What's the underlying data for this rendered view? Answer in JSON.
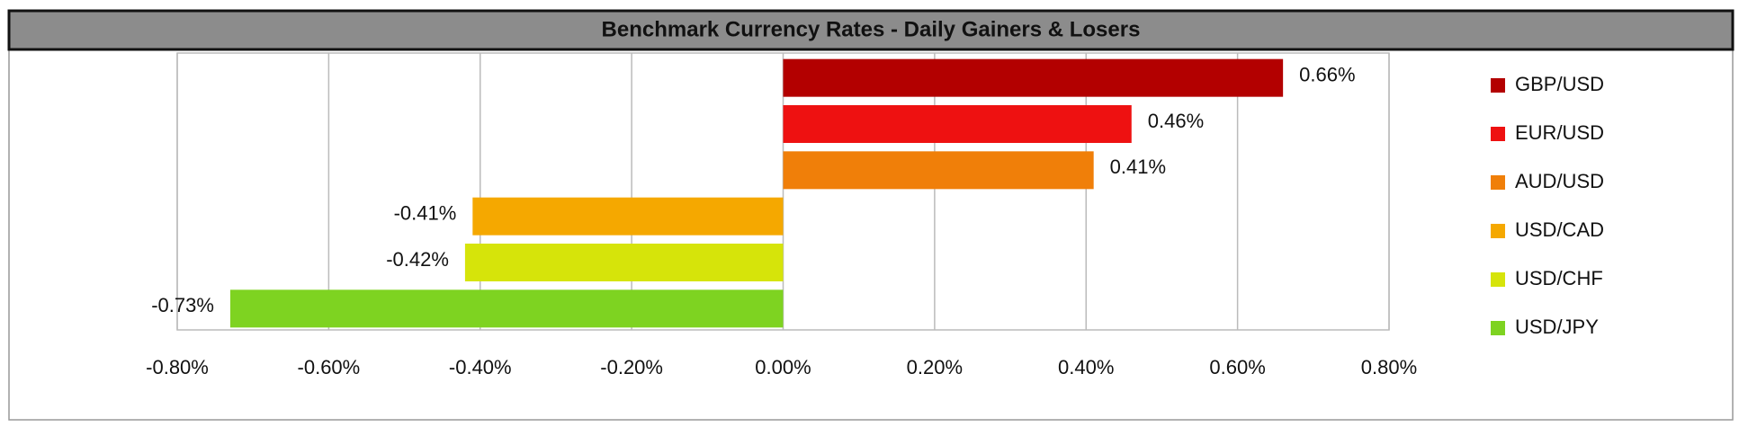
{
  "chart_data": {
    "type": "hbar",
    "title": "Benchmark Currency Rates - Daily Gainers & Losers",
    "categories": [
      "GBP/USD",
      "EUR/USD",
      "AUD/USD",
      "USD/CAD",
      "USD/CHF",
      "USD/JPY"
    ],
    "values": [
      0.66,
      0.46,
      0.41,
      -0.41,
      -0.42,
      -0.73
    ],
    "value_labels": [
      "0.66%",
      "0.46%",
      "0.41%",
      "-0.41%",
      "-0.42%",
      "-0.73%"
    ],
    "colors": [
      "#b30000",
      "#ee1111",
      "#f07f09",
      "#f5a800",
      "#d6e40a",
      "#7ed321"
    ],
    "xlim": [
      -0.8,
      0.8
    ],
    "xticks": [
      {
        "value": -0.8,
        "label": "-0.80%"
      },
      {
        "value": -0.6,
        "label": "-0.60%"
      },
      {
        "value": -0.4,
        "label": "-0.40%"
      },
      {
        "value": -0.2,
        "label": "-0.20%"
      },
      {
        "value": 0,
        "label": "0.00%"
      },
      {
        "value": 0.2,
        "label": "0.20%"
      },
      {
        "value": 0.4,
        "label": "0.40%"
      },
      {
        "value": 0.6,
        "label": "0.60%"
      },
      {
        "value": 0.8,
        "label": "0.80%"
      }
    ],
    "grid": true,
    "legend": "right"
  }
}
